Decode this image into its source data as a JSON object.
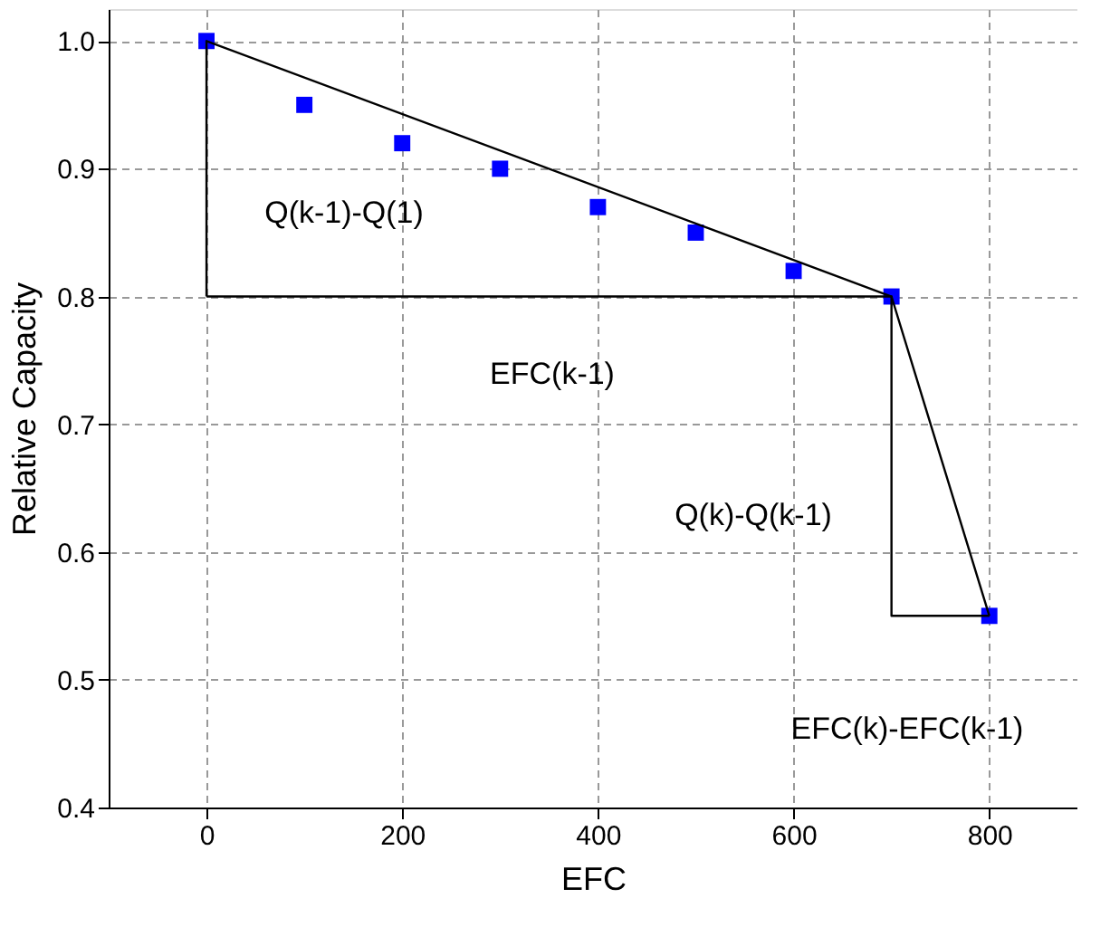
{
  "chart_data": {
    "type": "scatter",
    "xlabel": "EFC",
    "ylabel": "Relative Capacity",
    "x": [
      0,
      100,
      200,
      300,
      400,
      500,
      600,
      700,
      800
    ],
    "series": [
      {
        "color": "#0000ff",
        "marker": "square",
        "values": [
          1.0,
          0.95,
          0.92,
          0.9,
          0.87,
          0.85,
          0.82,
          0.8,
          0.55
        ]
      },
      {
        "type": "line",
        "color": "#000000",
        "marker": "none",
        "line_style": "solid",
        "x": [
          0,
          0,
          700,
          800
        ],
        "values": [
          0.8,
          1.0,
          0.8,
          0.55
        ]
      },
      {
        "type": "line",
        "color": "#000000",
        "marker": "none",
        "line_style": "solid",
        "x": [
          0,
          700,
          700,
          800
        ],
        "values": [
          0.8,
          0.8,
          0.55,
          0.55
        ]
      }
    ],
    "xlim": [
      -100,
      890
    ],
    "ylim": [
      0.4,
      1.025
    ],
    "xticks": [
      0,
      200,
      400,
      600,
      800
    ],
    "yticks": [
      0.4,
      0.5,
      0.6,
      0.7,
      0.8,
      0.9,
      {
        "value": 1.0,
        "label": "1.0"
      }
    ],
    "grid": true,
    "annotations": [
      "Q(k-1)-Q(1)",
      "EFC(k-1)",
      "Q(k)-Q(k-1)",
      "EFC(k)-EFC(k-1)"
    ]
  }
}
